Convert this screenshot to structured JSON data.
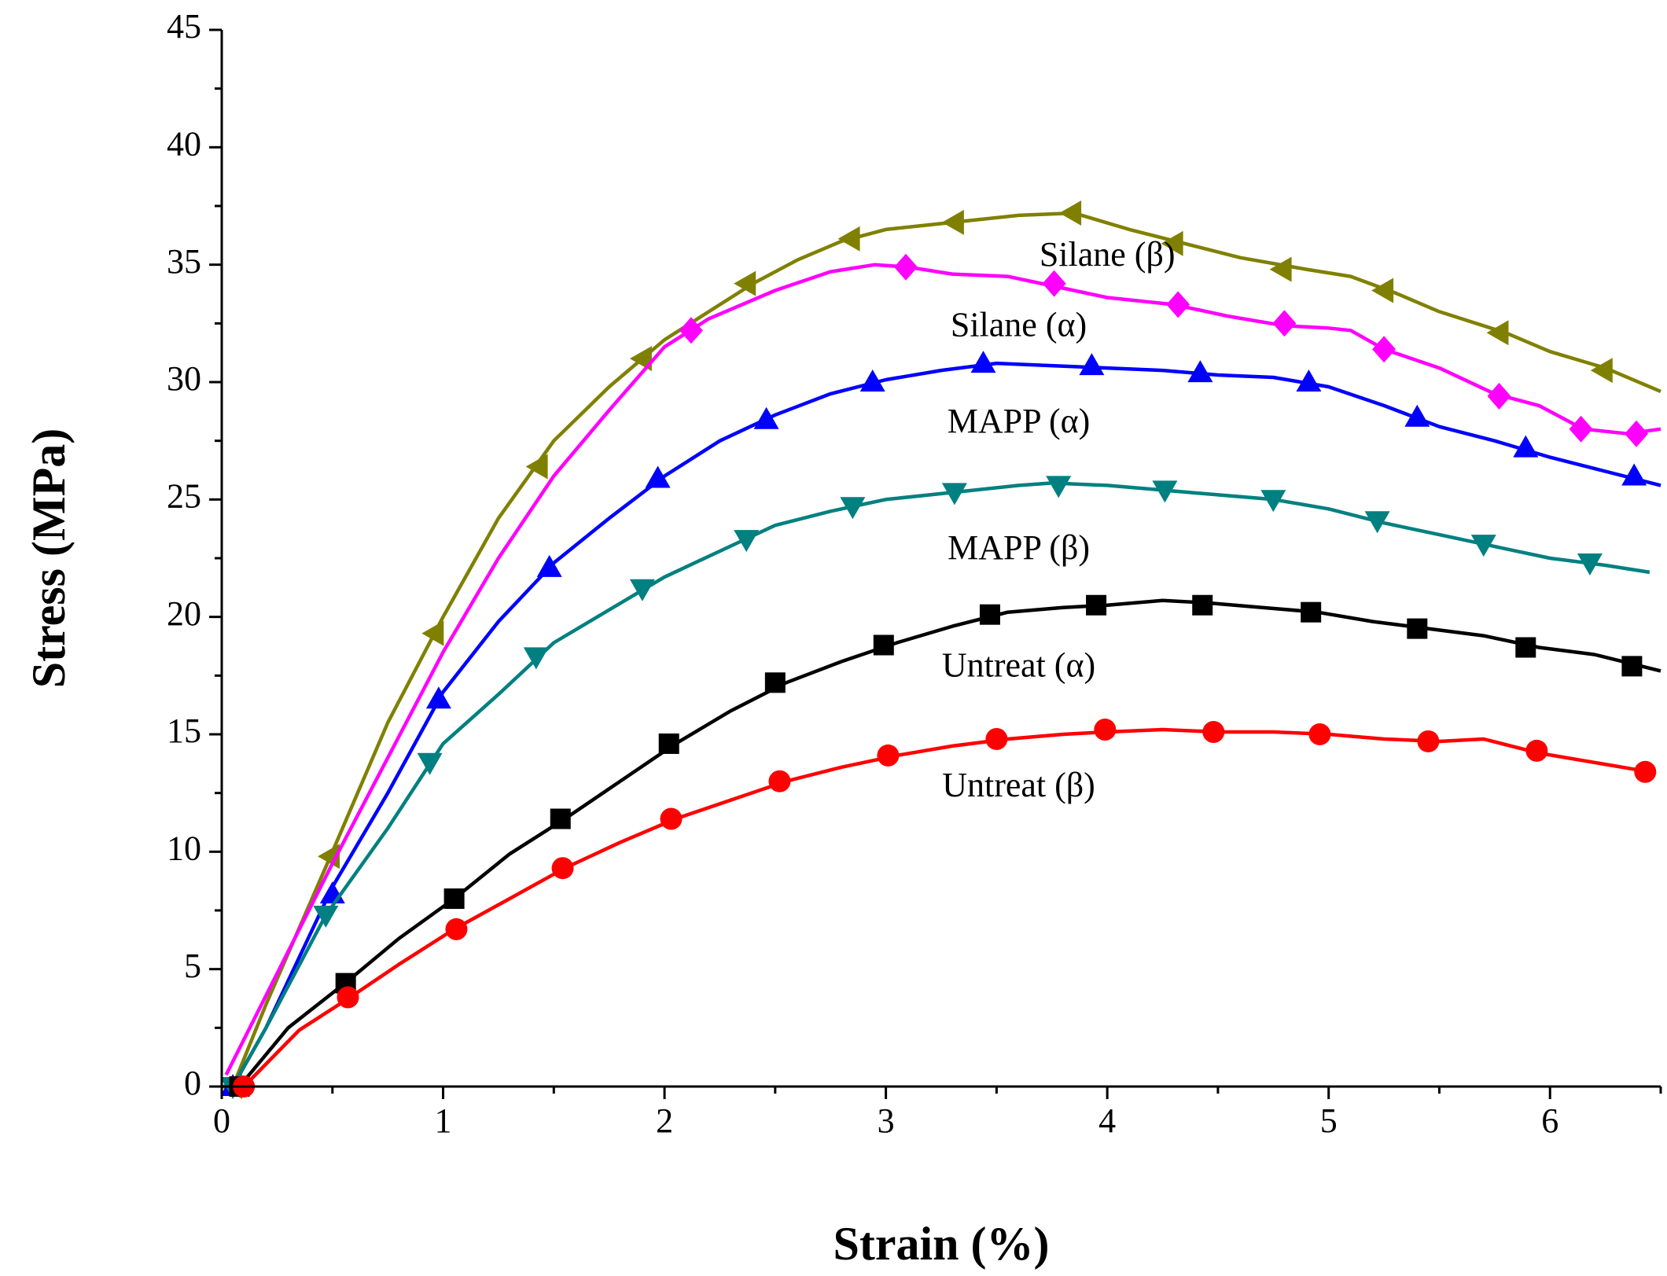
{
  "chart_data": {
    "type": "line",
    "title": "",
    "xlabel": "Strain (%)",
    "ylabel": "Stress (MPa)",
    "xlim": [
      0,
      6.5
    ],
    "ylim": [
      0,
      45
    ],
    "xticks": [
      0,
      1,
      2,
      3,
      4,
      5,
      6
    ],
    "xtick_labels": [
      "0",
      "1",
      "2",
      "3",
      "4",
      "5",
      "6"
    ],
    "yticks": [
      0,
      5,
      10,
      15,
      20,
      25,
      30,
      35,
      40,
      45
    ],
    "ytick_labels": [
      "0",
      "5",
      "10",
      "15",
      "20",
      "25",
      "30",
      "35",
      "40",
      "45"
    ],
    "grid": false,
    "legend": "none",
    "series": [
      {
        "name": "Silane (β)",
        "color": "#808000",
        "marker": "triangle-left",
        "line": [
          [
            0.05,
            0
          ],
          [
            0.2,
            3.5
          ],
          [
            0.5,
            10
          ],
          [
            0.75,
            15.5
          ],
          [
            1.0,
            20
          ],
          [
            1.25,
            24.2
          ],
          [
            1.5,
            27.5
          ],
          [
            1.75,
            29.8
          ],
          [
            2.0,
            31.8
          ],
          [
            2.2,
            33
          ],
          [
            2.4,
            34.2
          ],
          [
            2.6,
            35.2
          ],
          [
            2.8,
            36
          ],
          [
            3.0,
            36.5
          ],
          [
            3.2,
            36.7
          ],
          [
            3.4,
            36.9
          ],
          [
            3.6,
            37.1
          ],
          [
            3.85,
            37.2
          ],
          [
            4.1,
            36.5
          ],
          [
            4.35,
            35.9
          ],
          [
            4.6,
            35.3
          ],
          [
            4.9,
            34.8
          ],
          [
            5.1,
            34.5
          ],
          [
            5.3,
            33.8
          ],
          [
            5.5,
            33
          ],
          [
            5.8,
            32.1
          ],
          [
            6.0,
            31.3
          ],
          [
            6.25,
            30.6
          ],
          [
            6.5,
            29.6
          ]
        ],
        "markers": [
          [
            0.05,
            0
          ],
          [
            0.49,
            9.8
          ],
          [
            0.96,
            19.3
          ],
          [
            1.43,
            26.4
          ],
          [
            1.9,
            31
          ],
          [
            2.37,
            34.2
          ],
          [
            2.84,
            36.1
          ],
          [
            3.31,
            36.8
          ],
          [
            3.84,
            37.2
          ],
          [
            4.3,
            35.9
          ],
          [
            4.79,
            34.8
          ],
          [
            5.25,
            33.9
          ],
          [
            5.77,
            32.1
          ],
          [
            6.24,
            30.5
          ]
        ]
      },
      {
        "name": "Silane (α)",
        "color": "#ff00ff",
        "marker": "diamond",
        "line": [
          [
            0.02,
            0.5
          ],
          [
            0.5,
            9.5
          ],
          [
            1.0,
            18.5
          ],
          [
            1.25,
            22.5
          ],
          [
            1.5,
            26
          ],
          [
            1.75,
            28.8
          ],
          [
            2.0,
            31.5
          ],
          [
            2.2,
            32.7
          ],
          [
            2.5,
            33.9
          ],
          [
            2.75,
            34.7
          ],
          [
            2.95,
            35
          ],
          [
            3.1,
            34.9
          ],
          [
            3.3,
            34.6
          ],
          [
            3.55,
            34.5
          ],
          [
            3.75,
            34.1
          ],
          [
            4.0,
            33.6
          ],
          [
            4.3,
            33.3
          ],
          [
            4.55,
            32.8
          ],
          [
            4.8,
            32.4
          ],
          [
            5.0,
            32.3
          ],
          [
            5.1,
            32.2
          ],
          [
            5.25,
            31.4
          ],
          [
            5.5,
            30.6
          ],
          [
            5.75,
            29.5
          ],
          [
            5.95,
            29
          ],
          [
            6.15,
            28
          ],
          [
            6.35,
            27.8
          ],
          [
            6.5,
            28
          ]
        ],
        "markers": [
          [
            2.12,
            32.2
          ],
          [
            3.09,
            34.9
          ],
          [
            3.76,
            34.2
          ],
          [
            4.32,
            33.3
          ],
          [
            4.8,
            32.5
          ],
          [
            5.25,
            31.4
          ],
          [
            5.77,
            29.4
          ],
          [
            6.14,
            28
          ],
          [
            6.39,
            27.8
          ]
        ]
      },
      {
        "name": "MAPP (α)",
        "color": "#0000ff",
        "marker": "triangle-up",
        "line": [
          [
            0.05,
            0
          ],
          [
            0.2,
            2.5
          ],
          [
            0.5,
            8.5
          ],
          [
            0.75,
            12.5
          ],
          [
            1.0,
            16.8
          ],
          [
            1.25,
            19.8
          ],
          [
            1.5,
            22.3
          ],
          [
            1.75,
            24.2
          ],
          [
            2.0,
            26
          ],
          [
            2.25,
            27.5
          ],
          [
            2.5,
            28.6
          ],
          [
            2.75,
            29.5
          ],
          [
            3.0,
            30.1
          ],
          [
            3.25,
            30.5
          ],
          [
            3.5,
            30.8
          ],
          [
            3.75,
            30.7
          ],
          [
            4.0,
            30.6
          ],
          [
            4.25,
            30.5
          ],
          [
            4.5,
            30.3
          ],
          [
            4.75,
            30.2
          ],
          [
            5.0,
            29.8
          ],
          [
            5.25,
            29
          ],
          [
            5.5,
            28.1
          ],
          [
            5.75,
            27.5
          ],
          [
            6.0,
            26.8
          ],
          [
            6.25,
            26.2
          ],
          [
            6.5,
            25.6
          ]
        ],
        "markers": [
          [
            0.05,
            0
          ],
          [
            0.5,
            8.2
          ],
          [
            0.98,
            16.5
          ],
          [
            1.48,
            22.1
          ],
          [
            1.97,
            25.9
          ],
          [
            2.46,
            28.4
          ],
          [
            2.94,
            30
          ],
          [
            3.44,
            30.8
          ],
          [
            3.93,
            30.7
          ],
          [
            4.42,
            30.4
          ],
          [
            4.91,
            30
          ],
          [
            5.4,
            28.5
          ],
          [
            5.89,
            27.2
          ],
          [
            6.38,
            26
          ]
        ]
      },
      {
        "name": "MAPP (β)",
        "color": "#008080",
        "marker": "triangle-down",
        "line": [
          [
            0.05,
            0
          ],
          [
            0.2,
            2.5
          ],
          [
            0.47,
            7.3
          ],
          [
            0.75,
            11
          ],
          [
            1.0,
            14.6
          ],
          [
            1.25,
            16.7
          ],
          [
            1.5,
            18.9
          ],
          [
            1.75,
            20.3
          ],
          [
            2.0,
            21.7
          ],
          [
            2.25,
            22.8
          ],
          [
            2.5,
            23.9
          ],
          [
            2.75,
            24.5
          ],
          [
            3.0,
            25
          ],
          [
            3.3,
            25.3
          ],
          [
            3.6,
            25.6
          ],
          [
            3.75,
            25.7
          ],
          [
            4.0,
            25.6
          ],
          [
            4.25,
            25.4
          ],
          [
            4.5,
            25.2
          ],
          [
            4.75,
            25
          ],
          [
            5.0,
            24.6
          ],
          [
            5.25,
            24
          ],
          [
            5.5,
            23.5
          ],
          [
            5.75,
            23
          ],
          [
            6.0,
            22.5
          ],
          [
            6.25,
            22.2
          ],
          [
            6.45,
            21.9
          ]
        ],
        "markers": [
          [
            0.05,
            0
          ],
          [
            0.47,
            7.3
          ],
          [
            0.94,
            13.8
          ],
          [
            1.42,
            18.3
          ],
          [
            1.9,
            21.2
          ],
          [
            2.37,
            23.3
          ],
          [
            2.85,
            24.7
          ],
          [
            3.31,
            25.3
          ],
          [
            3.78,
            25.6
          ],
          [
            4.26,
            25.4
          ],
          [
            4.75,
            25
          ],
          [
            5.22,
            24.1
          ],
          [
            5.7,
            23.1
          ],
          [
            6.18,
            22.3
          ]
        ]
      },
      {
        "name": "Untreat (α)",
        "color": "#000000",
        "marker": "square",
        "line": [
          [
            0.08,
            0
          ],
          [
            0.3,
            2.5
          ],
          [
            0.57,
            4.5
          ],
          [
            0.8,
            6.3
          ],
          [
            1.05,
            8
          ],
          [
            1.3,
            9.9
          ],
          [
            1.55,
            11.4
          ],
          [
            1.8,
            13
          ],
          [
            2.05,
            14.6
          ],
          [
            2.3,
            16
          ],
          [
            2.55,
            17.2
          ],
          [
            2.8,
            18.1
          ],
          [
            3.05,
            18.9
          ],
          [
            3.3,
            19.6
          ],
          [
            3.55,
            20.2
          ],
          [
            3.8,
            20.4
          ],
          [
            4.0,
            20.5
          ],
          [
            4.25,
            20.7
          ],
          [
            4.45,
            20.6
          ],
          [
            4.7,
            20.4
          ],
          [
            4.95,
            20.2
          ],
          [
            5.2,
            19.8
          ],
          [
            5.45,
            19.5
          ],
          [
            5.7,
            19.2
          ],
          [
            5.95,
            18.7
          ],
          [
            6.2,
            18.4
          ],
          [
            6.5,
            17.7
          ]
        ],
        "markers": [
          [
            0.08,
            0
          ],
          [
            0.56,
            4.4
          ],
          [
            1.05,
            8
          ],
          [
            1.53,
            11.4
          ],
          [
            2.02,
            14.6
          ],
          [
            2.5,
            17.2
          ],
          [
            2.99,
            18.8
          ],
          [
            3.47,
            20.1
          ],
          [
            3.95,
            20.5
          ],
          [
            4.43,
            20.5
          ],
          [
            4.92,
            20.2
          ],
          [
            5.4,
            19.5
          ],
          [
            5.89,
            18.7
          ],
          [
            6.37,
            17.9
          ]
        ]
      },
      {
        "name": "Untreat (β)",
        "color": "#ff0000",
        "marker": "circle",
        "line": [
          [
            0.1,
            0
          ],
          [
            0.35,
            2.4
          ],
          [
            0.58,
            3.8
          ],
          [
            0.8,
            5.2
          ],
          [
            1.05,
            6.7
          ],
          [
            1.3,
            8
          ],
          [
            1.55,
            9.3
          ],
          [
            1.8,
            10.4
          ],
          [
            2.05,
            11.4
          ],
          [
            2.3,
            12.2
          ],
          [
            2.55,
            13
          ],
          [
            2.8,
            13.6
          ],
          [
            3.05,
            14.1
          ],
          [
            3.3,
            14.5
          ],
          [
            3.55,
            14.8
          ],
          [
            3.8,
            15
          ],
          [
            4.0,
            15.1
          ],
          [
            4.25,
            15.2
          ],
          [
            4.5,
            15.1
          ],
          [
            4.75,
            15.1
          ],
          [
            5.0,
            15
          ],
          [
            5.25,
            14.8
          ],
          [
            5.5,
            14.7
          ],
          [
            5.7,
            14.8
          ],
          [
            5.95,
            14.2
          ],
          [
            6.2,
            13.8
          ],
          [
            6.45,
            13.4
          ]
        ],
        "markers": [
          [
            0.1,
            0
          ],
          [
            0.57,
            3.8
          ],
          [
            1.06,
            6.7
          ],
          [
            1.54,
            9.3
          ],
          [
            2.03,
            11.4
          ],
          [
            2.52,
            13
          ],
          [
            3.01,
            14.1
          ],
          [
            3.5,
            14.8
          ],
          [
            3.99,
            15.2
          ],
          [
            4.48,
            15.1
          ],
          [
            4.96,
            15
          ],
          [
            5.45,
            14.7
          ],
          [
            5.94,
            14.3
          ],
          [
            6.43,
            13.4
          ]
        ]
      }
    ],
    "annotations": [
      {
        "text": "Silane (β)",
        "x": 4.0,
        "y": 35.3
      },
      {
        "text": "Silane (α)",
        "x": 3.6,
        "y": 32.3
      },
      {
        "text": "MAPP (α)",
        "x": 3.6,
        "y": 28.2
      },
      {
        "text": "MAPP (β)",
        "x": 3.6,
        "y": 22.8
      },
      {
        "text": "Untreat (α)",
        "x": 3.6,
        "y": 17.8
      },
      {
        "text": "Untreat (β)",
        "x": 3.6,
        "y": 12.7
      }
    ]
  }
}
